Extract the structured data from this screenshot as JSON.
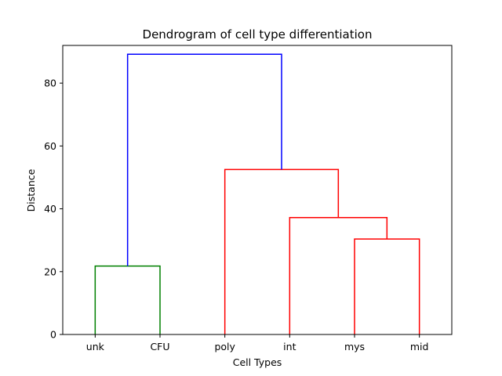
{
  "chart_data": {
    "type": "dendrogram",
    "title": "Dendrogram of cell type differentiation",
    "xlabel": "Cell Types",
    "ylabel": "Distance",
    "leaves": [
      "unk",
      "CFU",
      "poly",
      "int",
      "mys",
      "mid"
    ],
    "ylim": [
      0,
      92
    ],
    "yticks": [
      0,
      20,
      40,
      60,
      80
    ],
    "grid": false,
    "legend": "none",
    "merges": [
      {
        "left": "unk",
        "right": "CFU",
        "distance": 21.8,
        "color": "#008000"
      },
      {
        "left": "mys",
        "right": "mid",
        "distance": 30.4,
        "color": "#ff0000"
      },
      {
        "left": "int",
        "right": "mys+mid",
        "distance": 37.2,
        "color": "#ff0000"
      },
      {
        "left": "poly",
        "right": "int+mys+mid",
        "distance": 52.5,
        "color": "#ff0000"
      },
      {
        "left": "unk+CFU",
        "right": "poly+int+mys+mid",
        "distance": 89.2,
        "color": "#0000ff"
      }
    ]
  }
}
